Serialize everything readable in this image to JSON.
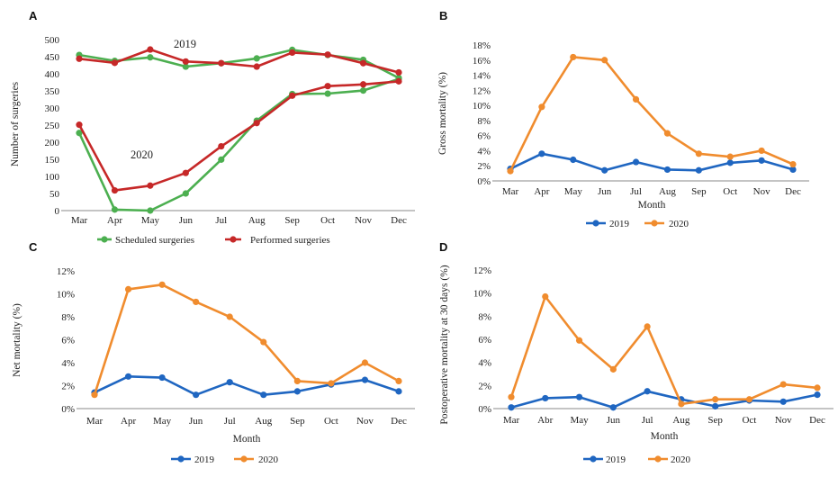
{
  "colors": {
    "scheduled": "#4caf50",
    "performed": "#c62828",
    "y2019": "#1f66c1",
    "y2020": "#f08c2e",
    "axis": "#888888"
  },
  "chart_data": [
    {
      "panel": "A",
      "type": "line",
      "categories": [
        "Mar",
        "Apr",
        "May",
        "Jun",
        "Jul",
        "Aug",
        "Sep",
        "Oct",
        "Nov",
        "Dec"
      ],
      "ylabel": "Number of surgeries",
      "xlabel": "",
      "ylim": [
        0,
        500
      ],
      "yticks": [
        "0",
        "50",
        "100",
        "150",
        "200",
        "250",
        "300",
        "350",
        "400",
        "450",
        "500"
      ],
      "annotations": [
        "2019",
        "2020"
      ],
      "legend": [
        "Scheduled surgeries",
        "Performed surgeries"
      ],
      "series": [
        {
          "name": "Scheduled surgeries",
          "group": "2019",
          "values": [
            455,
            438,
            448,
            421,
            431,
            445,
            470,
            455,
            441,
            388
          ]
        },
        {
          "name": "Performed surgeries",
          "group": "2019",
          "values": [
            444,
            432,
            471,
            436,
            431,
            421,
            462,
            456,
            431,
            404
          ]
        },
        {
          "name": "Scheduled surgeries",
          "group": "2020",
          "values": [
            227,
            3,
            0,
            50,
            149,
            263,
            341,
            342,
            351,
            385
          ]
        },
        {
          "name": "Performed surgeries",
          "group": "2020",
          "values": [
            251,
            59,
            73,
            110,
            188,
            256,
            336,
            364,
            369,
            378
          ]
        }
      ]
    },
    {
      "panel": "B",
      "type": "line",
      "categories": [
        "Mar",
        "Apr",
        "May",
        "Jun",
        "Jul",
        "Aug",
        "Sep",
        "Oct",
        "Nov",
        "Dec"
      ],
      "ylabel": "Gross mortality (%)",
      "xlabel": "Month",
      "ylim": [
        0,
        18
      ],
      "yticks": [
        "0%",
        "2%",
        "4%",
        "6%",
        "8%",
        "10%",
        "12%",
        "14%",
        "16%",
        "18%"
      ],
      "legend": [
        "2019",
        "2020"
      ],
      "series": [
        {
          "name": "2019",
          "values": [
            1.6,
            3.6,
            2.8,
            1.4,
            2.5,
            1.5,
            1.4,
            2.4,
            2.7,
            1.5
          ]
        },
        {
          "name": "2020",
          "values": [
            1.3,
            9.8,
            16.4,
            16.0,
            10.8,
            6.3,
            3.6,
            3.2,
            4.0,
            2.2
          ]
        }
      ]
    },
    {
      "panel": "C",
      "type": "line",
      "categories": [
        "Mar",
        "Apr",
        "May",
        "Jun",
        "Jul",
        "Aug",
        "Sep",
        "Oct",
        "Nov",
        "Dec"
      ],
      "ylabel": "Net mortality (%)",
      "xlabel": "Month",
      "ylim": [
        0,
        12
      ],
      "yticks": [
        "0%",
        "2%",
        "4%",
        "6%",
        "8%",
        "10%",
        "12%"
      ],
      "legend": [
        "2019",
        "2020"
      ],
      "series": [
        {
          "name": "2019",
          "values": [
            1.4,
            2.8,
            2.7,
            1.2,
            2.3,
            1.2,
            1.5,
            2.1,
            2.5,
            1.5
          ]
        },
        {
          "name": "2020",
          "values": [
            1.2,
            10.4,
            10.8,
            9.3,
            8.0,
            5.8,
            2.4,
            2.2,
            4.0,
            2.4
          ]
        }
      ]
    },
    {
      "panel": "D",
      "type": "line",
      "categories": [
        "Mar",
        "Abr",
        "May",
        "Jun",
        "Jul",
        "Aug",
        "Sep",
        "Oct",
        "Nov",
        "Dec"
      ],
      "ylabel": "Postoperative mortality at 30 days (%)",
      "xlabel": "Month",
      "ylim": [
        0,
        12
      ],
      "yticks": [
        "0%",
        "2%",
        "4%",
        "6%",
        "8%",
        "10%",
        "12%"
      ],
      "legend": [
        "2019",
        "2020"
      ],
      "series": [
        {
          "name": "2019",
          "values": [
            0.1,
            0.9,
            1.0,
            0.1,
            1.5,
            0.8,
            0.2,
            0.7,
            0.6,
            1.2
          ]
        },
        {
          "name": "2020",
          "values": [
            1.0,
            9.7,
            5.9,
            3.4,
            7.1,
            0.4,
            0.8,
            0.8,
            2.1,
            1.8
          ]
        }
      ]
    }
  ]
}
